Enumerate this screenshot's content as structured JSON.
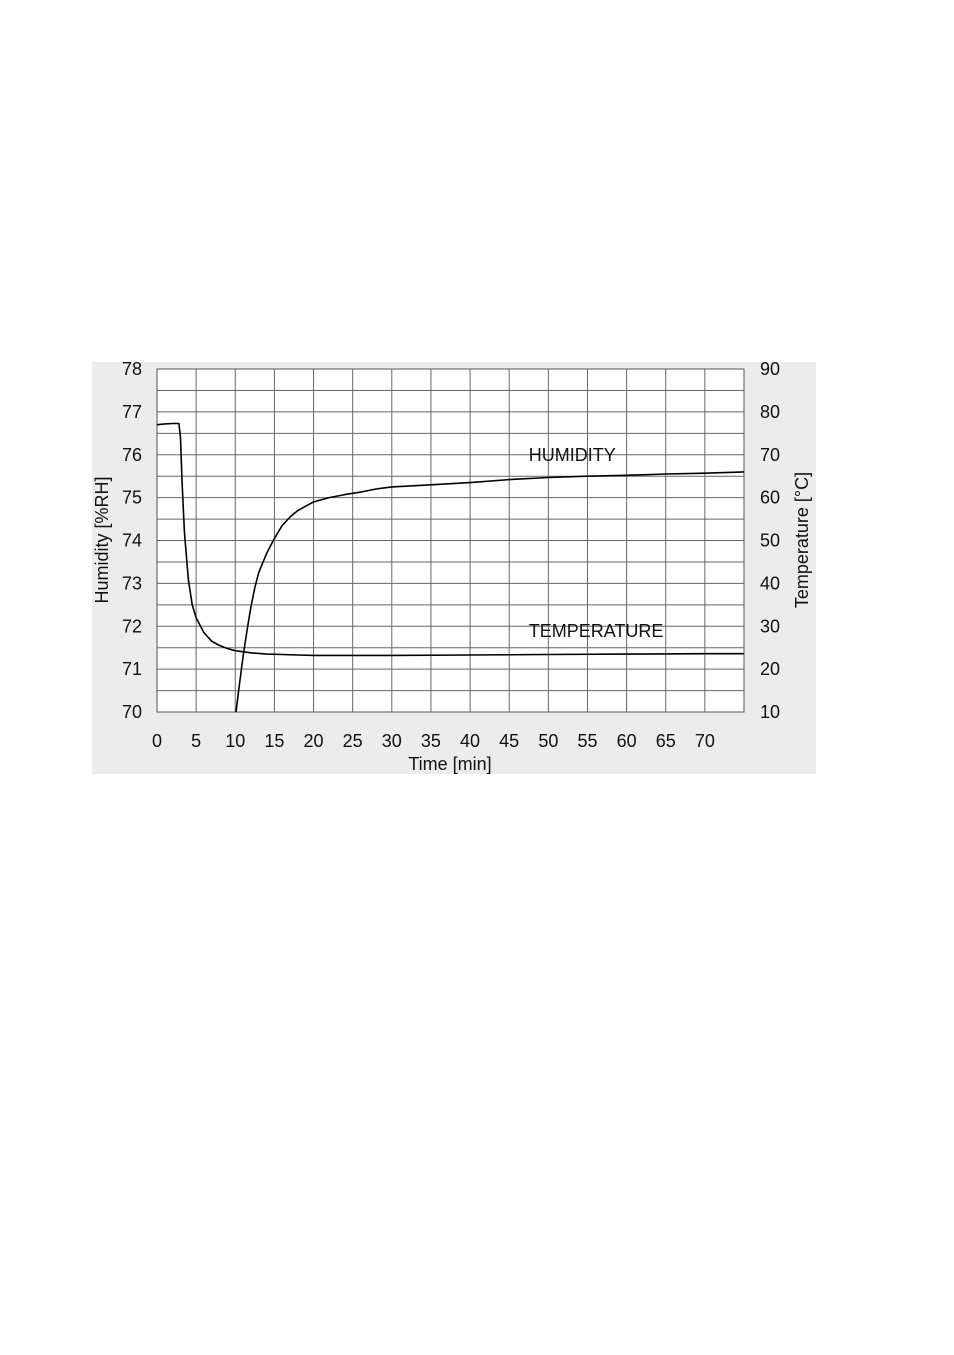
{
  "chart_data": {
    "type": "line",
    "xlabel": "Time [min]",
    "ylabel_left": "Humidity [%RH]",
    "ylabel_right": "Temperature [°C]",
    "xlim": [
      0,
      75
    ],
    "ylim_left": [
      70,
      78
    ],
    "ylim_right": [
      10,
      90
    ],
    "x_ticks": [
      0,
      5,
      10,
      15,
      20,
      25,
      30,
      35,
      40,
      45,
      50,
      55,
      60,
      65,
      70
    ],
    "y_left_ticks": [
      70,
      71,
      72,
      73,
      74,
      75,
      76,
      77,
      78
    ],
    "y_right_ticks": [
      10,
      20,
      30,
      40,
      50,
      60,
      70,
      80,
      90
    ],
    "grid": true,
    "series": [
      {
        "name": "HUMIDITY",
        "axis": "left",
        "x": [
          10.1,
          10.5,
          11,
          11.5,
          12,
          12.5,
          13,
          14,
          15,
          16,
          17,
          18,
          19,
          20,
          22,
          24,
          26,
          28,
          30,
          35,
          40,
          45,
          50,
          55,
          60,
          65,
          70,
          75
        ],
        "values": [
          70.0,
          70.6,
          71.3,
          71.9,
          72.45,
          72.9,
          73.25,
          73.7,
          74.05,
          74.35,
          74.55,
          74.7,
          74.8,
          74.9,
          75.0,
          75.07,
          75.13,
          75.2,
          75.25,
          75.3,
          75.35,
          75.42,
          75.47,
          75.5,
          75.52,
          75.55,
          75.57,
          75.6
        ]
      },
      {
        "name": "TEMPERATURE",
        "axis": "right",
        "x": [
          0,
          1,
          2,
          2.8,
          3.0,
          3.2,
          3.5,
          4,
          4.5,
          5,
          6,
          7,
          8,
          9,
          10,
          12,
          14,
          16,
          18,
          20,
          25,
          30,
          40,
          50,
          60,
          70,
          75
        ],
        "values": [
          77,
          77.2,
          77.3,
          77.3,
          74,
          64,
          52,
          41,
          35,
          32,
          28.5,
          26.5,
          25.5,
          24.8,
          24.3,
          23.8,
          23.5,
          23.4,
          23.3,
          23.2,
          23.2,
          23.2,
          23.3,
          23.4,
          23.5,
          23.6,
          23.6
        ]
      }
    ],
    "annotations": [
      {
        "text": "HUMIDITY",
        "x": 47.5,
        "y_left": 75.85
      },
      {
        "text": "TEMPERATURE",
        "x": 47.5,
        "y_left": 71.75
      }
    ]
  }
}
